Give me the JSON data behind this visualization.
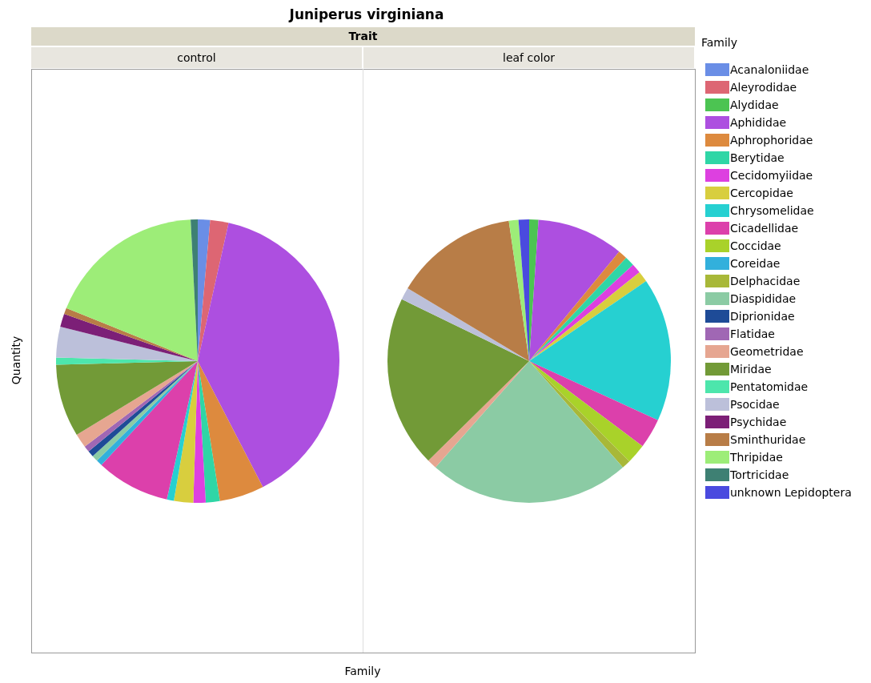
{
  "chart_data": {
    "type": "pie",
    "title": "Juniperus virginiana",
    "annotations": [
      "Trait"
    ],
    "xlabel": "Family",
    "ylabel": "Quantity",
    "legend": "right",
    "legend_title": "Family",
    "categories": [
      "Acanaloniidae",
      "Aleyrodidae",
      "Alydidae",
      "Aphididae",
      "Aphrophoridae",
      "Berytidae",
      "Cecidomyiidae",
      "Cercopidae",
      "Chrysomelidae",
      "Cicadellidae",
      "Coccidae",
      "Coreidae",
      "Delphacidae",
      "Diaspididae",
      "Diprionidae",
      "Flatidae",
      "Geometridae",
      "Miridae",
      "Pentatomidae",
      "Psocidae",
      "Psychidae",
      "Sminthuridae",
      "Thripidae",
      "Tortricidae",
      "unknown Lepidoptera"
    ],
    "colors": [
      "#6a8ee6",
      "#dd6673",
      "#4cc452",
      "#ad4fe0",
      "#dd8a3e",
      "#2fd6a6",
      "#dd40e0",
      "#d8ce3e",
      "#26d0d1",
      "#dc40ab",
      "#a9d22a",
      "#32b0dc",
      "#a8b838",
      "#8bcba4",
      "#1e4b97",
      "#a067b4",
      "#e6a691",
      "#729a37",
      "#4de6ac",
      "#bcc0da",
      "#7c1f77",
      "#b87d47",
      "#9ded78",
      "#3e8073",
      "#4a4adf"
    ],
    "series": [
      {
        "name": "control",
        "values": [
          1.4,
          2.1,
          null,
          38.9,
          5.1,
          1.6,
          1.4,
          2.2,
          0.8,
          8.4,
          null,
          0.7,
          null,
          0.7,
          0.7,
          0.7,
          1.6,
          8.3,
          0.8,
          3.5,
          1.5,
          0.7,
          18.1,
          0.8,
          null
        ]
      },
      {
        "name": "leaf color",
        "values": [
          null,
          null,
          1.05,
          9.9,
          1.05,
          1.1,
          1.1,
          1.25,
          16.4,
          3.4,
          2.25,
          null,
          1.0,
          23.0,
          null,
          null,
          1.1,
          19.6,
          null,
          1.4,
          null,
          14.1,
          1.1,
          null,
          1.2
        ]
      }
    ]
  }
}
